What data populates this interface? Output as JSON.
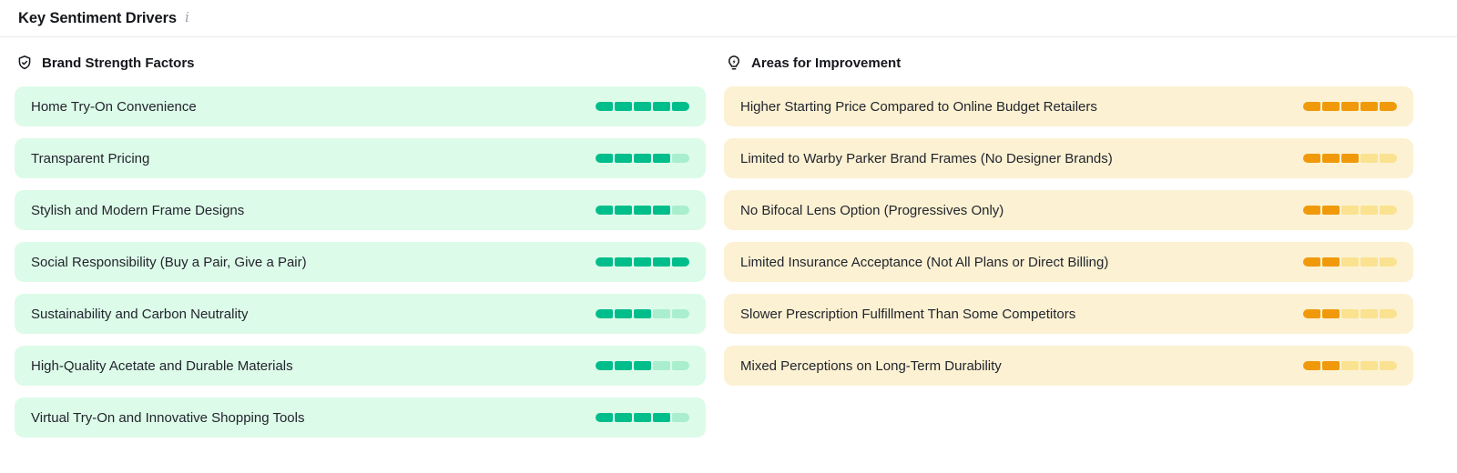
{
  "header": {
    "title": "Key Sentiment Drivers",
    "info_icon": "i"
  },
  "colors": {
    "positive_bg": "#ddfbe9",
    "positive_fill": "#00be8c",
    "positive_empty": "#a9eecd",
    "negative_bg": "#fcf1d2",
    "negative_fill": "#f09a0b",
    "negative_empty": "#fae290"
  },
  "columns": {
    "strengths": {
      "title": "Brand Strength Factors",
      "icon": "shield-check-icon",
      "max_score": 5,
      "items": [
        {
          "label": "Home Try-On Convenience",
          "score": 5
        },
        {
          "label": "Transparent Pricing",
          "score": 4
        },
        {
          "label": "Stylish and Modern Frame Designs",
          "score": 4
        },
        {
          "label": "Social Responsibility (Buy a Pair, Give a Pair)",
          "score": 5
        },
        {
          "label": "Sustainability and Carbon Neutrality",
          "score": 3
        },
        {
          "label": "High-Quality Acetate and Durable Materials",
          "score": 3
        },
        {
          "label": "Virtual Try-On and Innovative Shopping Tools",
          "score": 4
        }
      ]
    },
    "improvements": {
      "title": "Areas for Improvement",
      "icon": "lightbulb-bolt-icon",
      "max_score": 5,
      "items": [
        {
          "label": "Higher Starting Price Compared to Online Budget Retailers",
          "score": 5
        },
        {
          "label": "Limited to Warby Parker Brand Frames (No Designer Brands)",
          "score": 3
        },
        {
          "label": "No Bifocal Lens Option (Progressives Only)",
          "score": 2
        },
        {
          "label": "Limited Insurance Acceptance (Not All Plans or Direct Billing)",
          "score": 2
        },
        {
          "label": "Slower Prescription Fulfillment Than Some Competitors",
          "score": 2
        },
        {
          "label": "Mixed Perceptions on Long-Term Durability",
          "score": 2
        }
      ]
    }
  }
}
